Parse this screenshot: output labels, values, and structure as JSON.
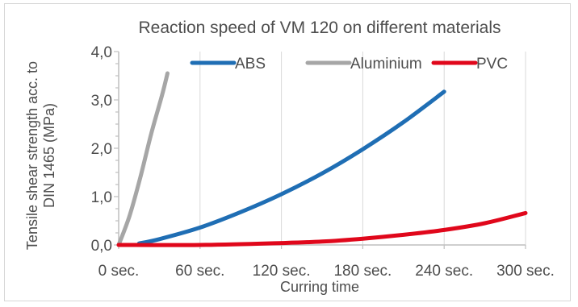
{
  "chart_data": {
    "type": "line",
    "title": "Reaction speed of VM 120 on different materials",
    "xlabel": "Curring time",
    "ylabel_lines": [
      "Tensile shear strength acc. to",
      "DIN 1465 (MPa)"
    ],
    "xlim": [
      0,
      300
    ],
    "ylim": [
      0,
      4
    ],
    "x_ticks": [
      {
        "value": 0,
        "label": "0 sec."
      },
      {
        "value": 60,
        "label": "60 sec."
      },
      {
        "value": 120,
        "label": "120 sec."
      },
      {
        "value": 180,
        "label": "180 sec."
      },
      {
        "value": 240,
        "label": "240 sec."
      },
      {
        "value": 300,
        "label": "300 sec."
      }
    ],
    "y_ticks": [
      {
        "value": 0,
        "label": "0,0"
      },
      {
        "value": 1,
        "label": "1,0"
      },
      {
        "value": 2,
        "label": "2,0"
      },
      {
        "value": 3,
        "label": "3,0"
      },
      {
        "value": 4,
        "label": "4,0"
      }
    ],
    "grid": "vertical",
    "legend_position": "top",
    "series": [
      {
        "name": "ABS",
        "color": "#1f6eb4",
        "points": [
          [
            15,
            0.03
          ],
          [
            30,
            0.12
          ],
          [
            60,
            0.36
          ],
          [
            90,
            0.68
          ],
          [
            120,
            1.05
          ],
          [
            150,
            1.48
          ],
          [
            180,
            1.98
          ],
          [
            210,
            2.54
          ],
          [
            240,
            3.17
          ]
        ]
      },
      {
        "name": "Aluminium",
        "color": "#a6a6a6",
        "points": [
          [
            0,
            0
          ],
          [
            8,
            0.6
          ],
          [
            16,
            1.4
          ],
          [
            24,
            2.3
          ],
          [
            32,
            3.1
          ],
          [
            36,
            3.55
          ]
        ]
      },
      {
        "name": "PVC",
        "color": "#e0071b",
        "points": [
          [
            0,
            0.0
          ],
          [
            60,
            0.0
          ],
          [
            120,
            0.04
          ],
          [
            150,
            0.07
          ],
          [
            180,
            0.13
          ],
          [
            210,
            0.21
          ],
          [
            240,
            0.31
          ],
          [
            270,
            0.45
          ],
          [
            300,
            0.66
          ]
        ]
      }
    ]
  }
}
